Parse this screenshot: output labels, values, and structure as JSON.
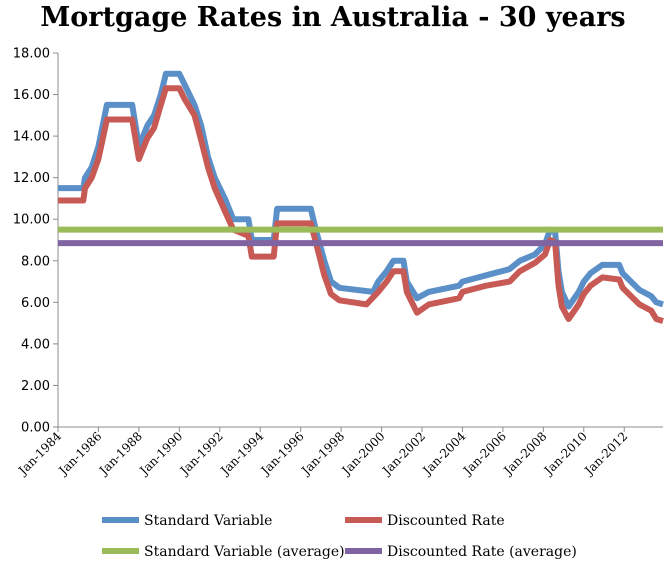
{
  "chart_data": {
    "type": "line",
    "title": "Mortgage Rates in Australia - 30 years",
    "xlabel": "",
    "ylabel": "",
    "ylim": [
      0,
      18
    ],
    "xlim": [
      "Jan-1984",
      "Dec-2013"
    ],
    "yticks": [
      "0.00",
      "2.00",
      "4.00",
      "6.00",
      "8.00",
      "10.00",
      "12.00",
      "14.00",
      "16.00",
      "18.00"
    ],
    "xticks": [
      "Jan-1984",
      "Jan-1986",
      "Jan-1988",
      "Jan-1990",
      "Jan-1992",
      "Jan-1994",
      "Jan-1996",
      "Jan-1998",
      "Jan-2000",
      "Jan-2002",
      "Jan-2004",
      "Jan-2006",
      "Jan-2008",
      "Jan-2010",
      "Jan-2012"
    ],
    "grid": false,
    "legend_position": "bottom",
    "series": [
      {
        "name": "Standard Variable",
        "color": "#5b8fc7",
        "points": [
          [
            "1984-01",
            11.5
          ],
          [
            "1985-04",
            11.5
          ],
          [
            "1985-05",
            12.0
          ],
          [
            "1985-09",
            12.5
          ],
          [
            "1986-01",
            13.5
          ],
          [
            "1986-06",
            15.5
          ],
          [
            "1987-09",
            15.5
          ],
          [
            "1988-01",
            13.5
          ],
          [
            "1988-06",
            14.5
          ],
          [
            "1988-10",
            15.0
          ],
          [
            "1989-02",
            16.0
          ],
          [
            "1989-05",
            17.0
          ],
          [
            "1990-01",
            17.0
          ],
          [
            "1990-04",
            16.5
          ],
          [
            "1990-10",
            15.5
          ],
          [
            "1991-02",
            14.5
          ],
          [
            "1991-06",
            13.0
          ],
          [
            "1991-10",
            12.0
          ],
          [
            "1992-04",
            11.0
          ],
          [
            "1992-09",
            10.0
          ],
          [
            "1993-06",
            10.0
          ],
          [
            "1993-08",
            9.0
          ],
          [
            "1994-09",
            9.0
          ],
          [
            "1994-11",
            10.5
          ],
          [
            "1996-07",
            10.5
          ],
          [
            "1996-10",
            9.5
          ],
          [
            "1997-03",
            8.0
          ],
          [
            "1997-07",
            7.0
          ],
          [
            "1997-12",
            6.7
          ],
          [
            "1999-08",
            6.5
          ],
          [
            "1999-11",
            7.0
          ],
          [
            "2000-04",
            7.5
          ],
          [
            "2000-08",
            8.0
          ],
          [
            "2001-02",
            8.0
          ],
          [
            "2001-04",
            7.0
          ],
          [
            "2001-10",
            6.2
          ],
          [
            "2002-05",
            6.5
          ],
          [
            "2003-11",
            6.8
          ],
          [
            "2004-01",
            7.0
          ],
          [
            "2005-03",
            7.3
          ],
          [
            "2006-05",
            7.6
          ],
          [
            "2006-11",
            8.0
          ],
          [
            "2007-08",
            8.3
          ],
          [
            "2008-02",
            8.8
          ],
          [
            "2008-05",
            9.5
          ],
          [
            "2008-08",
            9.4
          ],
          [
            "2008-10",
            7.5
          ],
          [
            "2008-12",
            6.5
          ],
          [
            "2009-04",
            5.8
          ],
          [
            "2009-10",
            6.5
          ],
          [
            "2010-01",
            7.0
          ],
          [
            "2010-05",
            7.4
          ],
          [
            "2010-12",
            7.8
          ],
          [
            "2011-10",
            7.8
          ],
          [
            "2011-12",
            7.4
          ],
          [
            "2012-05",
            7.0
          ],
          [
            "2012-10",
            6.6
          ],
          [
            "2013-05",
            6.3
          ],
          [
            "2013-08",
            6.0
          ],
          [
            "2013-12",
            5.9
          ]
        ]
      },
      {
        "name": "Discounted Rate",
        "color": "#c85a55",
        "points": [
          [
            "1984-01",
            10.9
          ],
          [
            "1985-04",
            10.9
          ],
          [
            "1985-05",
            11.5
          ],
          [
            "1985-09",
            12.0
          ],
          [
            "1986-01",
            12.9
          ],
          [
            "1986-06",
            14.8
          ],
          [
            "1987-09",
            14.8
          ],
          [
            "1988-01",
            12.9
          ],
          [
            "1988-06",
            13.9
          ],
          [
            "1988-10",
            14.4
          ],
          [
            "1989-02",
            15.5
          ],
          [
            "1989-05",
            16.3
          ],
          [
            "1990-01",
            16.3
          ],
          [
            "1990-04",
            15.8
          ],
          [
            "1990-10",
            15.0
          ],
          [
            "1991-02",
            13.8
          ],
          [
            "1991-06",
            12.5
          ],
          [
            "1991-10",
            11.5
          ],
          [
            "1992-04",
            10.4
          ],
          [
            "1992-09",
            9.5
          ],
          [
            "1993-06",
            9.2
          ],
          [
            "1993-08",
            8.2
          ],
          [
            "1994-09",
            8.2
          ],
          [
            "1994-11",
            9.8
          ],
          [
            "1996-07",
            9.8
          ],
          [
            "1996-10",
            8.9
          ],
          [
            "1997-03",
            7.3
          ],
          [
            "1997-07",
            6.4
          ],
          [
            "1997-12",
            6.1
          ],
          [
            "1999-04",
            5.9
          ],
          [
            "1999-11",
            6.5
          ],
          [
            "2000-04",
            7.0
          ],
          [
            "2000-08",
            7.5
          ],
          [
            "2001-02",
            7.5
          ],
          [
            "2001-04",
            6.5
          ],
          [
            "2001-10",
            5.5
          ],
          [
            "2002-05",
            5.9
          ],
          [
            "2003-11",
            6.2
          ],
          [
            "2004-01",
            6.5
          ],
          [
            "2005-03",
            6.8
          ],
          [
            "2006-05",
            7.0
          ],
          [
            "2006-11",
            7.5
          ],
          [
            "2007-08",
            7.9
          ],
          [
            "2008-02",
            8.3
          ],
          [
            "2008-05",
            9.0
          ],
          [
            "2008-08",
            8.9
          ],
          [
            "2008-10",
            6.8
          ],
          [
            "2008-12",
            5.8
          ],
          [
            "2009-04",
            5.2
          ],
          [
            "2009-10",
            5.9
          ],
          [
            "2010-01",
            6.4
          ],
          [
            "2010-05",
            6.8
          ],
          [
            "2010-12",
            7.2
          ],
          [
            "2011-10",
            7.1
          ],
          [
            "2011-12",
            6.7
          ],
          [
            "2012-05",
            6.3
          ],
          [
            "2012-10",
            5.9
          ],
          [
            "2013-05",
            5.6
          ],
          [
            "2013-08",
            5.2
          ],
          [
            "2013-12",
            5.1
          ]
        ]
      },
      {
        "name": "Standard Variable (average)",
        "color": "#9bbb59",
        "points": [
          [
            "1984-01",
            9.5
          ],
          [
            "2013-12",
            9.5
          ]
        ]
      },
      {
        "name": "Discounted Rate (average)",
        "color": "#8064a2",
        "points": [
          [
            "1984-01",
            8.85
          ],
          [
            "2013-12",
            8.85
          ]
        ]
      }
    ]
  }
}
